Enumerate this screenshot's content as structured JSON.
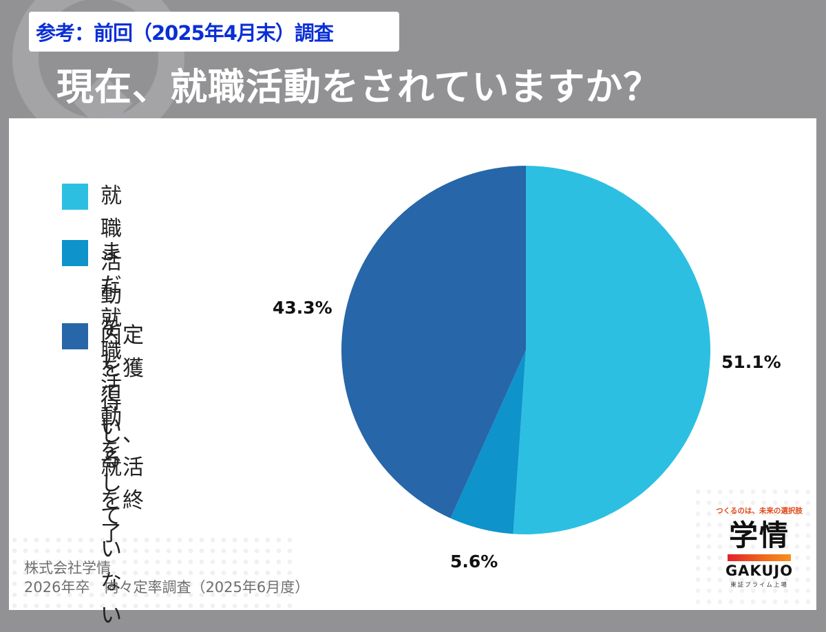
{
  "header": {
    "reference_badge": "参考：前回（2025年4月末）調査",
    "title": "現在、就職活動をされていますか？"
  },
  "colors": {
    "background": "#929194",
    "badge_text": "#0a2fd6",
    "series_active": "#2CBFE2",
    "series_not_started": "#0E93CB",
    "series_finished": "#2766A8"
  },
  "legend": [
    {
      "label": "就職活動をしている",
      "color": "#2CBFE2"
    },
    {
      "label": "まだ就職活動を\nしていない",
      "color": "#0E93CB"
    },
    {
      "label": "内定を獲得し、\n就活を終了",
      "color": "#2766A8"
    }
  ],
  "chart_data": {
    "type": "pie",
    "title": "現在、就職活動をされていますか？",
    "subtitle": "参考：前回（2025年4月末）調査",
    "categories": [
      "就職活動をしている",
      "まだ就職活動をしていない",
      "内定を獲得し、就活を終了"
    ],
    "values": [
      51.1,
      5.6,
      43.3
    ],
    "unit": "%",
    "colors": [
      "#2CBFE2",
      "#0E93CB",
      "#2766A8"
    ],
    "start_angle": "12 o'clock",
    "direction": "clockwise",
    "legend_position": "left",
    "data_labels": [
      "51.1%",
      "5.6%",
      "43.3%"
    ]
  },
  "labels": {
    "active": "51.1%",
    "not_started": "5.6%",
    "finished": "43.3%"
  },
  "footer": {
    "company": "株式会社学情",
    "survey": "2026年卒　内々定率調査（2025年6月度）"
  },
  "logo": {
    "tagline": "つくるのは、未来の選択肢",
    "kanji": "学情",
    "english": "GAKUJO",
    "listing": "東証プライム上場"
  }
}
